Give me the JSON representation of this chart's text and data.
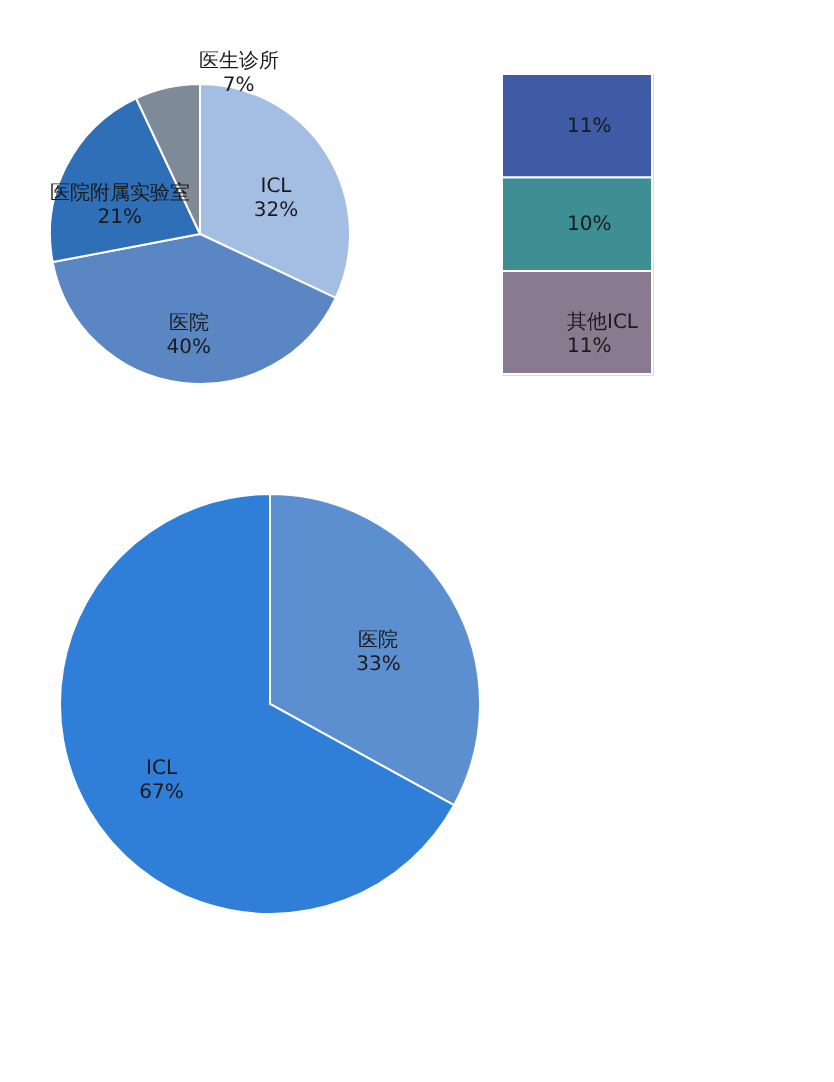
{
  "chart_data": [
    {
      "type": "pie",
      "categories": [
        "ICL",
        "医院",
        "医院附属实验室",
        "医生诊所"
      ],
      "values": [
        32,
        40,
        21,
        7
      ],
      "value_labels": [
        "32%",
        "40%",
        "21%",
        "7%"
      ],
      "colors": [
        "#a3bde3",
        "#5b86c4",
        "#2f6fb8",
        "#7f8a98"
      ]
    },
    {
      "type": "bar",
      "stacked": true,
      "categories": [
        null
      ],
      "series": [
        {
          "name": "其他ICL",
          "color": "#8a7a90",
          "values": [
            11
          ],
          "value_labels": [
            "11%"
          ]
        },
        {
          "color": "#3e8f94",
          "values": [
            10
          ],
          "value_labels": [
            "10%"
          ]
        },
        {
          "color": "#3f5ba6",
          "values": [
            11
          ],
          "value_labels": [
            "11%"
          ]
        }
      ]
    },
    {
      "type": "pie",
      "categories": [
        "医院",
        "ICL"
      ],
      "values": [
        33,
        67
      ],
      "value_labels": [
        "33%",
        "67%"
      ],
      "colors": [
        "#5b8fd0",
        "#2f7fd8"
      ]
    }
  ]
}
